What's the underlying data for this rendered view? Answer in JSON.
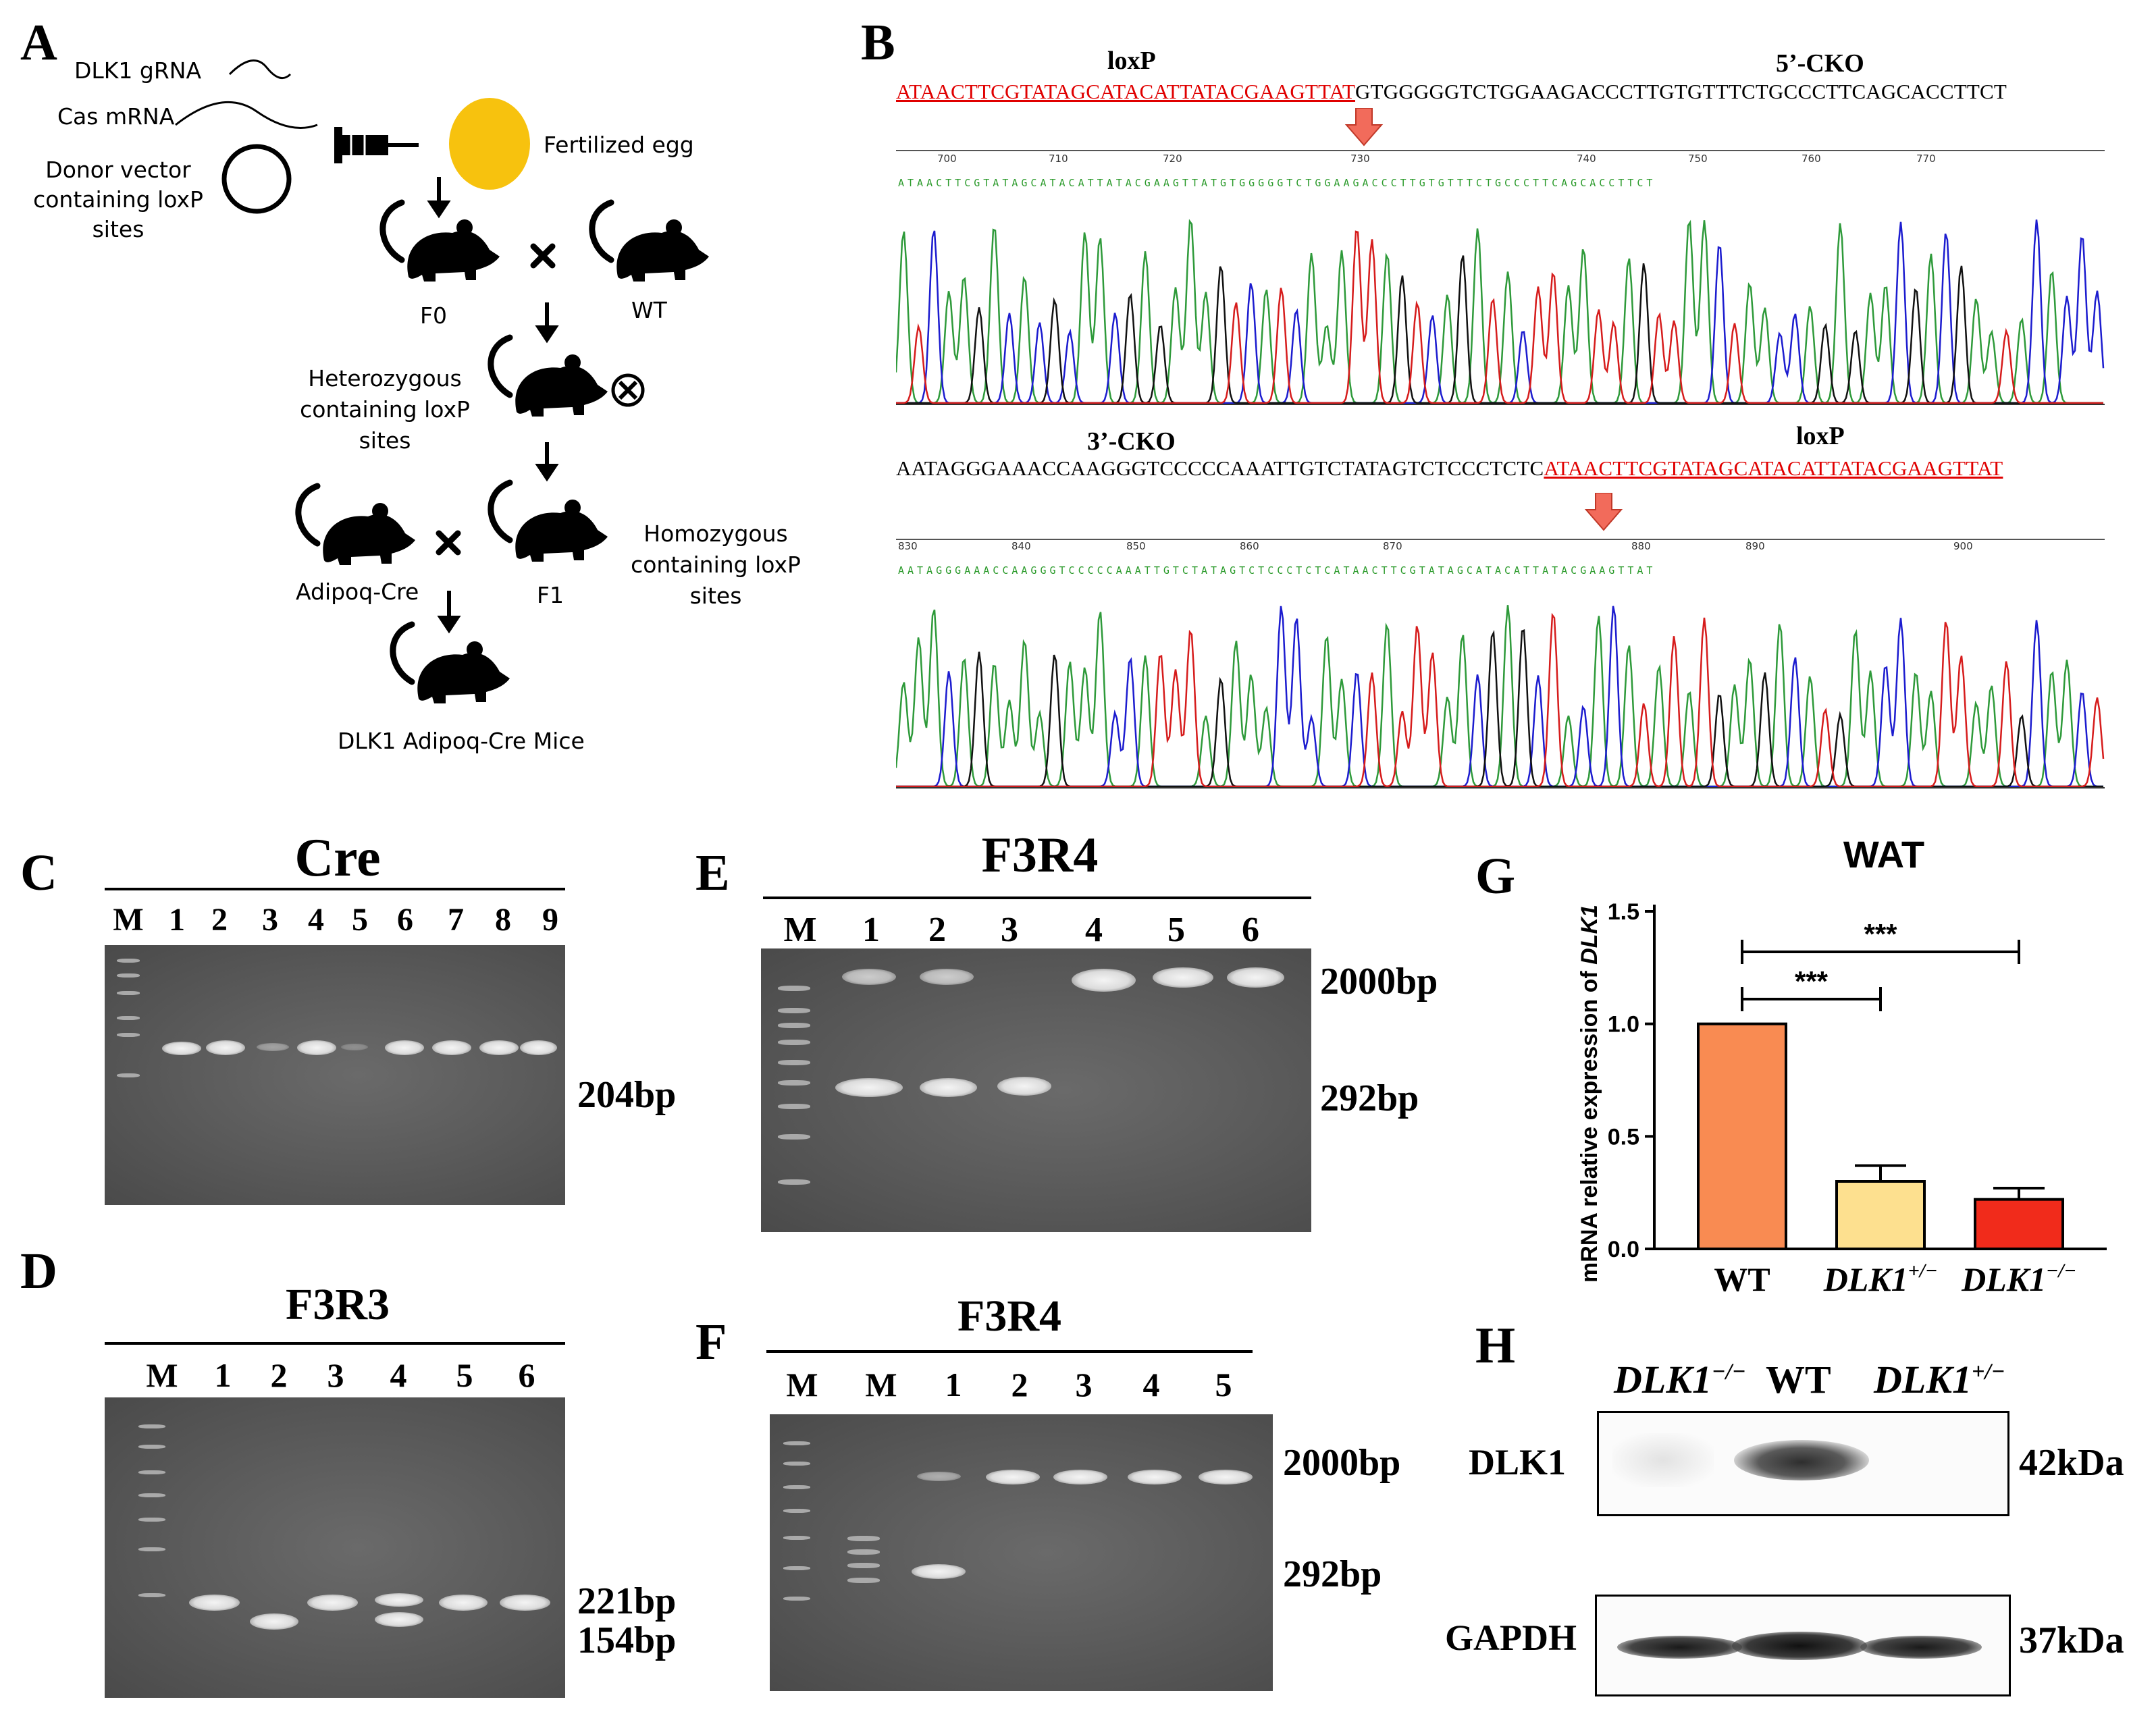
{
  "panelA": {
    "letter": "A",
    "gRNA": "DLK1 gRNA",
    "cas": "Cas mRNA",
    "donor_line1": "Donor vector",
    "donor_line2": "containing loxP sites",
    "egg": "Fertilized egg",
    "f0": "F0",
    "wt": "WT",
    "het_line1": "Heterozygous",
    "het_line2": "containing loxP sites",
    "homo_line1": "Homozygous",
    "homo_line2": "containing loxP sites",
    "adipoq": "Adipoq-Cre",
    "f1": "F1",
    "final": "DLK1 Adipoq-Cre Mice",
    "egg_color": "#f7c20e"
  },
  "panelB": {
    "letter": "B",
    "top_loxp": "loxP",
    "top_cko": "5’-CKO",
    "top_seq_red": "ATAACTTCGTATAGCATACATTATACGAAGTTAT",
    "top_seq_black": "GTGGGGGTCTGGAAGACCCTTGTGTTTCTGCCCTTCAGCACCTTCT",
    "top_ticks": [
      "700",
      "710",
      "720",
      "730",
      "740",
      "750",
      "760",
      "770"
    ],
    "top_small_seq": "ATAACTTCGTATAGCATACATTATACGAAGTTATGTGGGGGTCTGGAAGACCCTTGTGTTTCTGCCCTTCAGCACCTTCT",
    "bottom_cko": "3’-CKO",
    "bottom_loxp": "loxP",
    "bottom_seq_black": "AATAGGGAAACCAAGGGTCCCCCAAATTGTCTATAGTCTCCCTCTC",
    "bottom_seq_red": "ATAACTTCGTATAGCATACATTATACGAAGTTAT",
    "bottom_ticks": [
      "830",
      "840",
      "850",
      "860",
      "870",
      "880",
      "890",
      "900"
    ],
    "bottom_small_seq": "AATAGGGAAACCAAGGGTCCCCCAAATTGTCTATAGTCTCCCTCTCATAACTTCGTATAGCATACATTATACGAAGTTAT"
  },
  "panelC": {
    "letter": "C",
    "title": "Cre",
    "lanes": [
      "M",
      "1",
      "2",
      "3",
      "4",
      "5",
      "6",
      "7",
      "8",
      "9"
    ],
    "size": "204bp"
  },
  "panelD": {
    "letter": "D",
    "title": "F3R3",
    "lanes": [
      "M",
      "1",
      "2",
      "3",
      "4",
      "5",
      "6"
    ],
    "size1": "221bp",
    "size2": "154bp"
  },
  "panelE": {
    "letter": "E",
    "title": "F3R4",
    "lanes": [
      "M",
      "1",
      "2",
      "3",
      "4",
      "5",
      "6"
    ],
    "size1": "2000bp",
    "size2": "292bp"
  },
  "panelF": {
    "letter": "F",
    "title": "F3R4",
    "lanes": [
      "M",
      "M",
      "1",
      "2",
      "3",
      "4",
      "5"
    ],
    "size1": "2000bp",
    "size2": "292bp"
  },
  "panelG": {
    "letter": "G",
    "ylabel_prefix": "mRNA relative expression of ",
    "ylabel_gene": "DLK1",
    "sig1": "***",
    "sig2": "***"
  },
  "panelH": {
    "letter": "H",
    "col1": "DLK1",
    "col1_sup": "−/−",
    "col2": "WT",
    "col3": "DLK1",
    "col3_sup": "+/−",
    "row1": "DLK1",
    "row2": "GAPDH",
    "size1": "42kDa",
    "size2": "37kDa"
  },
  "chart_data": {
    "type": "bar",
    "title": "WAT",
    "categories": [
      "WT",
      "DLK1+/−",
      "DLK1−/−"
    ],
    "category_base": [
      "WT",
      "DLK1",
      "DLK1"
    ],
    "category_sup": [
      "",
      "+/−",
      "−/−"
    ],
    "values": [
      1.0,
      0.3,
      0.22
    ],
    "errors": [
      0.0,
      0.07,
      0.05
    ],
    "colors": [
      "#f98b52",
      "#fde08f",
      "#f12b1b"
    ],
    "ylabel": "mRNA relative expression of DLK1",
    "ylim": [
      0,
      1.5
    ],
    "yticks": [
      "0.0",
      "0.5",
      "1.0",
      "1.5"
    ],
    "grid": false,
    "significance": [
      {
        "from": "WT",
        "to": "DLK1+/−",
        "label": "***"
      },
      {
        "from": "WT",
        "to": "DLK1−/−",
        "label": "***"
      }
    ]
  }
}
